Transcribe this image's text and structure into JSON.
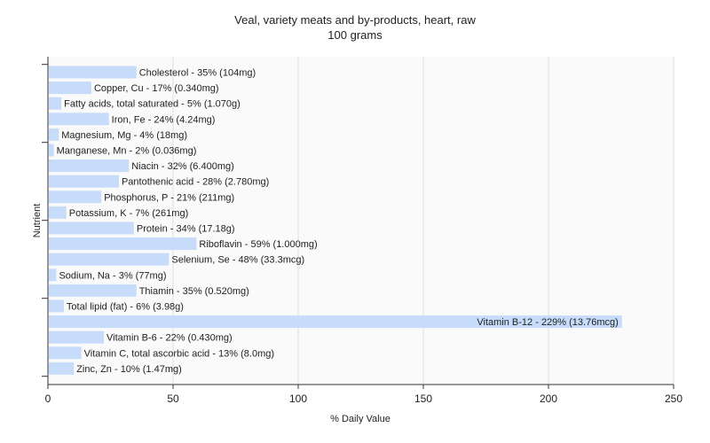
{
  "chart_data": {
    "type": "bar",
    "orientation": "horizontal",
    "title": "Veal, variety meats and by-products, heart, raw",
    "subtitle": "100 grams",
    "xlabel": "% Daily Value",
    "ylabel": "Nutrient",
    "xlim": [
      0,
      250
    ],
    "xticks": [
      0,
      50,
      100,
      150,
      200,
      250
    ],
    "grid": true,
    "bar_color": "#c6dcfa",
    "categories": [
      "Cholesterol",
      "Copper, Cu",
      "Fatty acids, total saturated",
      "Iron, Fe",
      "Magnesium, Mg",
      "Manganese, Mn",
      "Niacin",
      "Pantothenic acid",
      "Phosphorus, P",
      "Potassium, K",
      "Protein",
      "Riboflavin",
      "Selenium, Se",
      "Sodium, Na",
      "Thiamin",
      "Total lipid (fat)",
      "Vitamin B-12",
      "Vitamin B-6",
      "Vitamin C, total ascorbic acid",
      "Zinc, Zn"
    ],
    "values": [
      35,
      17,
      5,
      24,
      4,
      2,
      32,
      28,
      21,
      7,
      34,
      59,
      48,
      3,
      35,
      6,
      229,
      22,
      13,
      10
    ],
    "data_labels": [
      "Cholesterol - 35% (104mg)",
      "Copper, Cu - 17% (0.340mg)",
      "Fatty acids, total saturated - 5% (1.070g)",
      "Iron, Fe - 24% (4.24mg)",
      "Magnesium, Mg - 4% (18mg)",
      "Manganese, Mn - 2% (0.036mg)",
      "Niacin - 32% (6.400mg)",
      "Pantothenic acid - 28% (2.780mg)",
      "Phosphorus, P - 21% (211mg)",
      "Potassium, K - 7% (261mg)",
      "Protein - 34% (17.18g)",
      "Riboflavin - 59% (1.000mg)",
      "Selenium, Se - 48% (33.3mcg)",
      "Sodium, Na - 3% (77mg)",
      "Thiamin - 35% (0.520mg)",
      "Total lipid (fat) - 6% (3.98g)",
      "Vitamin B-12 - 229% (13.76mcg)",
      "Vitamin B-6 - 22% (0.430mg)",
      "Vitamin C, total ascorbic acid - 13% (8.0mg)",
      "Zinc, Zn - 10% (1.47mg)"
    ]
  }
}
